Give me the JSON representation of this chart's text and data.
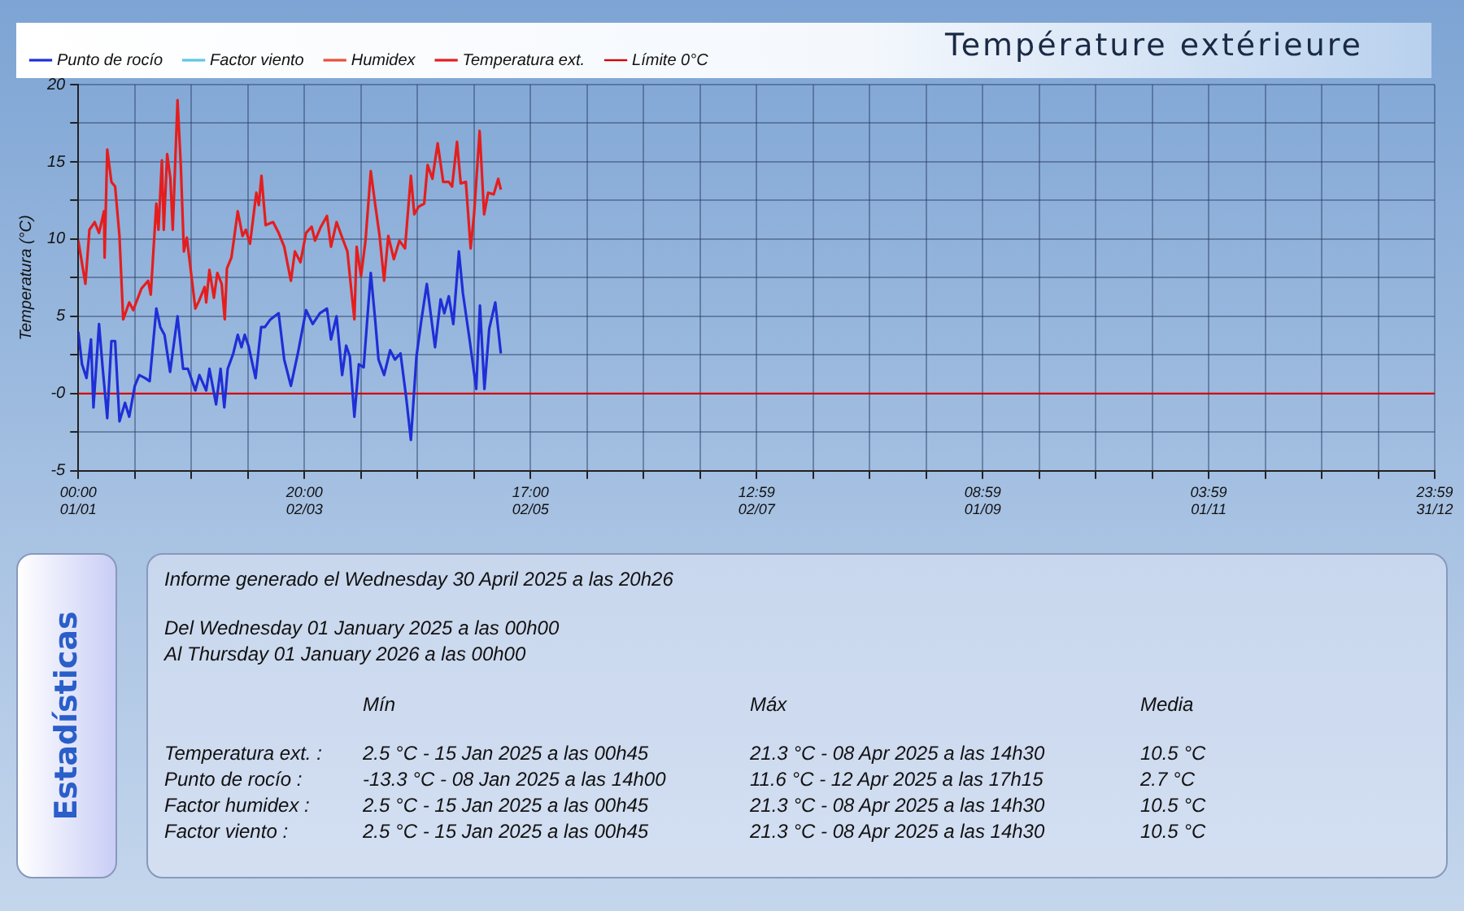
{
  "chart_data": {
    "type": "line",
    "title": "Température extérieure",
    "ylabel": "Temperatura (°C)",
    "xlim": [
      "2025-01-01T00:00",
      "2025-12-31T23:59"
    ],
    "xticks": [
      {
        "value": "2025-01-01T00:00",
        "label": "00:00 01/01"
      },
      {
        "value": "2025-01-16T05:15",
        "label": null
      },
      {
        "value": "2025-01-31T10:30",
        "label": null
      },
      {
        "value": "2025-02-15T15:45",
        "label": null
      },
      {
        "value": "2025-03-02T20:00",
        "label": "20:00 02/03"
      },
      {
        "value": "2025-03-18T01:15",
        "label": null
      },
      {
        "value": "2025-04-02T06:30",
        "label": null
      },
      {
        "value": "2025-04-17T11:45",
        "label": null
      },
      {
        "value": "2025-05-02T17:00",
        "label": "17:00 02/05"
      },
      {
        "value": "2025-05-17T22:15",
        "label": null
      },
      {
        "value": "2025-06-02T03:30",
        "label": null
      },
      {
        "value": "2025-06-17T08:45",
        "label": null
      },
      {
        "value": "2025-07-02T12:59",
        "label": "12:59 02/07"
      },
      {
        "value": "2025-07-17T18:14",
        "label": null
      },
      {
        "value": "2025-08-01T23:29",
        "label": null
      },
      {
        "value": "2025-08-17T04:44",
        "label": null
      },
      {
        "value": "2025-09-01T08:59",
        "label": "08:59 01/09"
      },
      {
        "value": "2025-09-16T14:14",
        "label": null
      },
      {
        "value": "2025-10-01T19:29",
        "label": null
      },
      {
        "value": "2025-10-17T00:44",
        "label": null
      },
      {
        "value": "2025-11-01T03:59",
        "label": "03:59 01/11"
      },
      {
        "value": "2025-11-16T09:14",
        "label": null
      },
      {
        "value": "2025-12-01T14:29",
        "label": null
      },
      {
        "value": "2025-12-16T19:44",
        "label": null
      },
      {
        "value": "2025-12-31T23:59",
        "label": "23:59 31/12"
      }
    ],
    "ylim": [
      -5,
      20
    ],
    "yticks": [
      -5,
      {
        "value": -2.5,
        "label": null
      },
      {
        "value": 0,
        "label": "-0"
      },
      {
        "value": 2.5,
        "label": null
      },
      5,
      {
        "value": 7.5,
        "label": null
      },
      10,
      {
        "value": 12.5,
        "label": null
      },
      15,
      {
        "value": 17.5,
        "label": null
      },
      20
    ],
    "grid": true,
    "legend": "top left",
    "series": [
      {
        "name": "Punto de rocío",
        "color": "#1f2fd6",
        "x": [
          "2025-01-01T00:00",
          "2025-01-02T00:00",
          "2025-01-03T05:00",
          "2025-01-04T10:00",
          "2025-01-05T02:00",
          "2025-01-06T14:00",
          "2025-01-07T14:00",
          "2025-01-08T19:00",
          "2025-01-09T22:00",
          "2025-01-10T22:00",
          "2025-01-12T02:00",
          "2025-01-13T14:00",
          "2025-01-14T17:00",
          "2025-01-16T05:00",
          "2025-01-17T10:00",
          "2025-01-19T00:00",
          "2025-01-20T05:00",
          "2025-01-22T00:00",
          "2025-01-23T02:00",
          "2025-01-24T05:00",
          "2025-01-25T17:00",
          "2025-01-27T17:00",
          "2025-01-29T05:00",
          "2025-01-30T12:00",
          "2025-02-01T12:00",
          "2025-02-02T14:00",
          "2025-02-04T10:00",
          "2025-02-05T07:00",
          "2025-02-07T02:00",
          "2025-02-08T07:00",
          "2025-02-09T07:00",
          "2025-02-10T05:00",
          "2025-02-11T17:00",
          "2025-02-12T22:00",
          "2025-02-13T22:00",
          "2025-02-14T19:00",
          "2025-02-15T19:00",
          "2025-02-17T17:00",
          "2025-02-19T05:00",
          "2025-02-20T05:00",
          "2025-02-21T17:00",
          "2025-02-23T22:00",
          "2025-02-25T10:00",
          "2025-02-27T05:00",
          "2025-03-01T02:00",
          "2025-03-03T07:00",
          "2025-03-05T02:00",
          "2025-03-07T00:00",
          "2025-03-08T22:00",
          "2025-03-10T00:00",
          "2025-03-11T12:00",
          "2025-03-13T00:00",
          "2025-03-14T02:00",
          "2025-03-15T02:00",
          "2025-03-16T07:00",
          "2025-03-17T12:00",
          "2025-03-18T19:00",
          "2025-03-20T17:00",
          "2025-03-21T22:00",
          "2025-03-22T19:00",
          "2025-03-24T07:00",
          "2025-03-25T22:00",
          "2025-03-27T05:00",
          "2025-03-28T17:00",
          "2025-03-30T05:00",
          "2025-03-31T12:00",
          "2025-04-02T00:00",
          "2025-04-03T07:00",
          "2025-04-04T19:00",
          "2025-04-07T00:00",
          "2025-04-08T12:00",
          "2025-04-09T12:00",
          "2025-04-10T17:00",
          "2025-04-11T22:00",
          "2025-04-13T10:00",
          "2025-04-14T12:00",
          "2025-04-16T07:00",
          "2025-04-18T02:00",
          "2025-04-19T02:00",
          "2025-04-20T07:00",
          "2025-04-21T14:00",
          "2025-04-23T05:00",
          "2025-04-24T17:00"
        ],
        "values": [
          4.0,
          1.9,
          1.0,
          3.5,
          -0.9,
          4.5,
          1.6,
          -1.6,
          3.4,
          3.4,
          -1.8,
          -0.6,
          -1.5,
          0.5,
          1.2,
          1.0,
          0.8,
          5.5,
          4.3,
          3.8,
          1.4,
          5.0,
          1.6,
          1.6,
          0.2,
          1.2,
          0.2,
          1.6,
          -0.7,
          1.6,
          -0.9,
          1.6,
          2.6,
          3.8,
          3.0,
          3.8,
          3.1,
          1.0,
          4.3,
          4.3,
          4.8,
          5.2,
          2.2,
          0.5,
          2.6,
          5.4,
          4.5,
          5.2,
          5.5,
          3.5,
          5.0,
          1.2,
          3.1,
          2.4,
          -1.5,
          1.9,
          1.7,
          7.8,
          4.7,
          2.2,
          1.2,
          2.8,
          2.2,
          2.6,
          -0.2,
          -3.0,
          2.4,
          4.7,
          7.1,
          3.0,
          6.1,
          5.2,
          6.3,
          4.5,
          9.2,
          6.5,
          3.5,
          0.3,
          5.7,
          0.3,
          4.2,
          5.9,
          2.6
        ]
      },
      {
        "name": "Factor viento",
        "color": "#5cc8e0"
      },
      {
        "name": "Humidex",
        "color": "#e8503a"
      },
      {
        "name": "Temperatura ext.",
        "color": "#e41e1e",
        "x": [
          "2025-01-01T00:00",
          "2025-01-02T22:00",
          "2025-01-04T00:00",
          "2025-01-05T10:00",
          "2025-01-06T14:00",
          "2025-01-07T22:00",
          "2025-01-08T02:00",
          "2025-01-08T19:00",
          "2025-01-09T22:00",
          "2025-01-10T22:00",
          "2025-01-12T02:00",
          "2025-01-13T02:00",
          "2025-01-14T17:00",
          "2025-01-15T19:00",
          "2025-01-18T00:00",
          "2025-01-19T19:00",
          "2025-01-20T12:00",
          "2025-01-22T00:00",
          "2025-01-22T14:00",
          "2025-01-23T12:00",
          "2025-01-24T00:00",
          "2025-01-24T22:00",
          "2025-01-25T19:00",
          "2025-01-26T10:00",
          "2025-01-27T17:00",
          "2025-01-28T14:00",
          "2025-01-29T10:00",
          "2025-01-30T05:00",
          "2025-02-01T12:00",
          "2025-02-02T12:00",
          "2025-02-04T00:00",
          "2025-02-04T10:00",
          "2025-02-05T07:00",
          "2025-02-06T12:00",
          "2025-02-07T10:00",
          "2025-02-08T14:00",
          "2025-02-09T10:00",
          "2025-02-10T00:00",
          "2025-02-11T05:00",
          "2025-02-12T22:00",
          "2025-02-14T05:00",
          "2025-02-15T02:00",
          "2025-02-16T05:00",
          "2025-02-17T22:00",
          "2025-02-18T14:00",
          "2025-02-19T07:00",
          "2025-02-20T10:00",
          "2025-02-22T10:00",
          "2025-02-23T22:00",
          "2025-02-25T10:00",
          "2025-02-27T05:00",
          "2025-02-28T07:00",
          "2025-03-01T19:00",
          "2025-03-03T07:00",
          "2025-03-04T19:00",
          "2025-03-05T17:00",
          "2025-03-07T07:00",
          "2025-03-08T22:00",
          "2025-03-10T00:00",
          "2025-03-11T12:00",
          "2025-03-13T00:00",
          "2025-03-14T10:00",
          "2025-03-15T02:00",
          "2025-03-16T07:00",
          "2025-03-16T22:00",
          "2025-03-18T02:00",
          "2025-03-19T07:00",
          "2025-03-20T17:00",
          "2025-03-21T22:00",
          "2025-03-23T02:00",
          "2025-03-24T07:00",
          "2025-03-25T10:00",
          "2025-03-26T22:00",
          "2025-03-28T10:00",
          "2025-03-29T22:00",
          "2025-03-31T12:00",
          "2025-04-01T10:00",
          "2025-04-02T14:00",
          "2025-04-04T02:00",
          "2025-04-05T00:00",
          "2025-04-06T07:00",
          "2025-04-07T17:00",
          "2025-04-09T05:00",
          "2025-04-10T17:00",
          "2025-04-11T14:00",
          "2025-04-12T22:00",
          "2025-04-13T22:00",
          "2025-04-15T07:00",
          "2025-04-16T14:00",
          "2025-04-17T12:00",
          "2025-04-19T00:00",
          "2025-04-20T05:00",
          "2025-04-21T07:00",
          "2025-04-22T19:00",
          "2025-04-24T00:00",
          "2025-04-24T17:00"
        ],
        "values": [
          9.9,
          7.1,
          10.6,
          11.1,
          10.4,
          11.8,
          8.8,
          15.8,
          13.7,
          13.4,
          10.2,
          4.8,
          5.9,
          5.4,
          6.8,
          7.3,
          6.4,
          12.3,
          10.6,
          15.1,
          10.6,
          15.5,
          13.9,
          10.6,
          19.0,
          14.8,
          9.2,
          10.1,
          5.5,
          6.0,
          6.9,
          5.9,
          8.0,
          6.2,
          7.8,
          7.1,
          4.8,
          8.1,
          8.8,
          11.8,
          10.2,
          10.6,
          9.7,
          13.0,
          12.2,
          14.1,
          10.9,
          11.1,
          10.4,
          9.5,
          7.3,
          9.2,
          8.5,
          10.4,
          10.8,
          9.9,
          10.8,
          11.5,
          9.5,
          11.1,
          10.1,
          9.2,
          7.6,
          4.8,
          9.5,
          7.6,
          9.9,
          14.4,
          12.2,
          10.2,
          7.3,
          10.2,
          8.7,
          9.9,
          9.4,
          14.1,
          11.6,
          12.1,
          12.3,
          14.8,
          13.9,
          16.2,
          13.7,
          13.7,
          13.4,
          16.3,
          13.6,
          13.7,
          9.4,
          11.6,
          17.0,
          11.6,
          13.0,
          12.9,
          13.9,
          13.2
        ]
      }
    ],
    "ref_lines": [
      {
        "axis": "y",
        "value": 0,
        "label": "Límite 0°C",
        "color": "#d40000"
      }
    ],
    "annotations": [
      "Estadísticas",
      "Informe generado el Wednesday 30 April 2025 a las 20h26",
      "Del Wednesday 01 January 2025 a las 00h00",
      "Al Thursday 01 January 2026 a las 00h00",
      "Mín",
      "Máx",
      "Media",
      "Temperatura ext. :",
      "2.5 °C - 15 Jan 2025 a las 00h45",
      "21.3 °C - 08 Apr 2025 a las 14h30",
      "10.5 °C",
      "Punto de rocío :",
      "-13.3 °C - 08 Jan 2025 a las 14h00",
      "11.6 °C - 12 Apr 2025 a las 17h15",
      "2.7 °C",
      "Factor humidex :",
      "2.5 °C - 15 Jan 2025 a las 00h45",
      "21.3 °C - 08 Apr 2025 a las 14h30",
      "10.5 °C",
      "Factor viento :",
      "2.5 °C - 15 Jan 2025 a las 00h45",
      "21.3 °C - 08 Apr 2025 a las 14h30",
      "10.5 °C"
    ]
  }
}
